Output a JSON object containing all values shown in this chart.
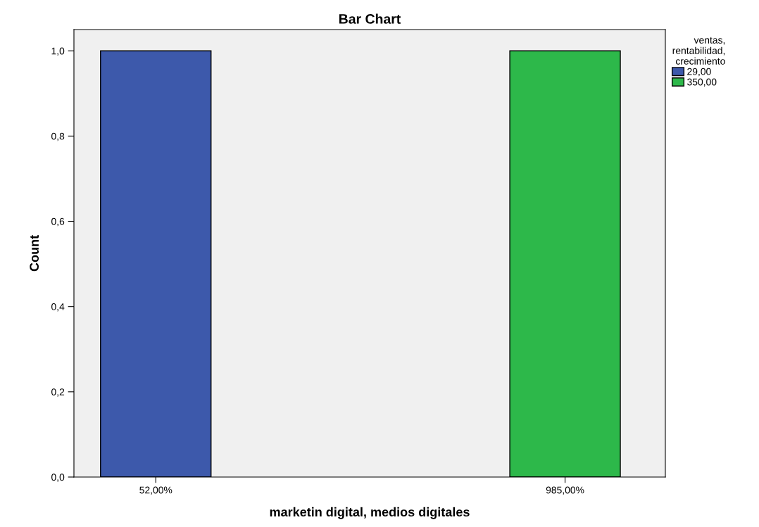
{
  "chart_data": {
    "type": "bar",
    "title": "Bar Chart",
    "xlabel": "marketin digital, medios digitales",
    "ylabel": "Count",
    "categories": [
      "52,00%",
      "985,00%"
    ],
    "series": [
      {
        "name": "29,00",
        "color": "#3d59ab",
        "values": [
          1,
          null
        ]
      },
      {
        "name": "350,00",
        "color": "#2db84a",
        "values": [
          null,
          1
        ]
      }
    ],
    "legend_title": "ventas, rentabilidad, crecimiento",
    "legend": "top right",
    "ylim": [
      0,
      1.05
    ],
    "yticks": [
      {
        "value": 0,
        "label": "0,0"
      },
      {
        "value": 0.2,
        "label": "0,2"
      },
      {
        "value": 0.4,
        "label": "0,4"
      },
      {
        "value": 0.6,
        "label": "0,6"
      },
      {
        "value": 0.8,
        "label": "0,8"
      },
      {
        "value": 1.0,
        "label": "1,0"
      }
    ],
    "grid": false
  }
}
